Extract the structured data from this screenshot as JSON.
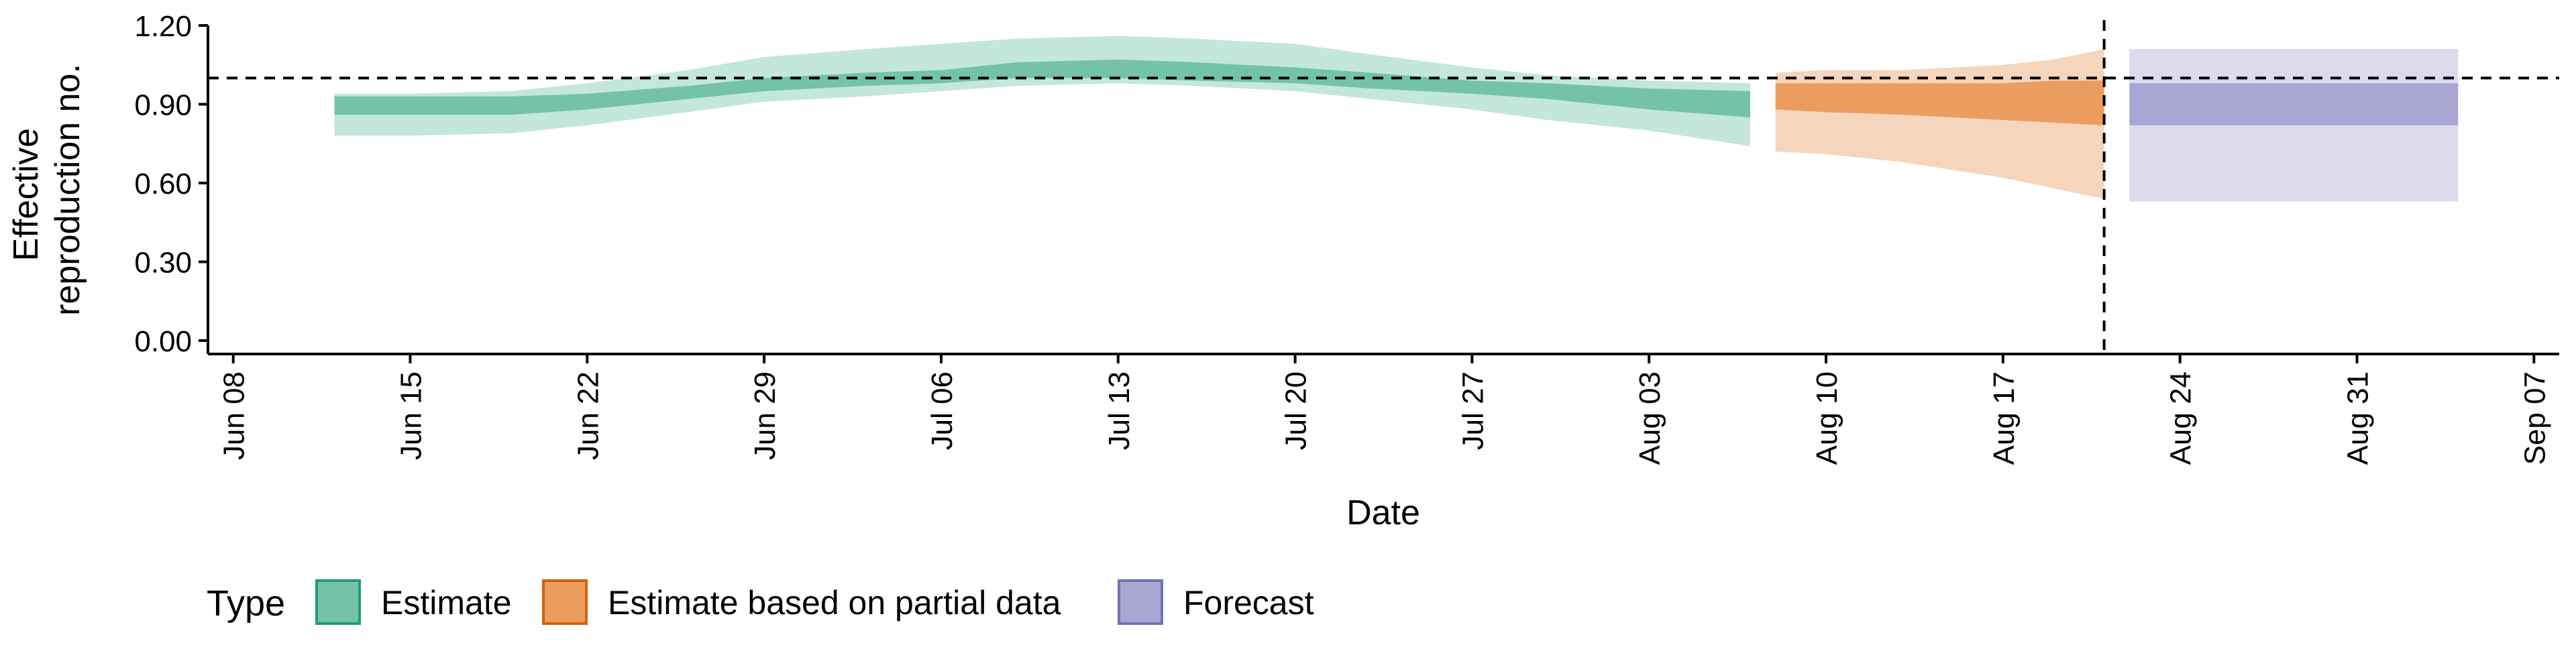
{
  "chart_data": {
    "type": "area",
    "title": "",
    "xlabel": "Date",
    "ylabel_lines": [
      "Effective",
      "reproduction no."
    ],
    "ylim": [
      0,
      1.2
    ],
    "xlim": [
      "2020-06-07",
      "2020-09-08"
    ],
    "y_ticks": [
      0,
      0.3,
      0.6,
      0.9,
      1.2
    ],
    "y_tick_labels": [
      "0.00",
      "0.30",
      "0.60",
      "0.90",
      "1.20"
    ],
    "x_ticks": [
      "2020-06-08",
      "2020-06-15",
      "2020-06-22",
      "2020-06-29",
      "2020-07-06",
      "2020-07-13",
      "2020-07-20",
      "2020-07-27",
      "2020-08-03",
      "2020-08-10",
      "2020-08-17",
      "2020-08-24",
      "2020-08-31",
      "2020-09-07"
    ],
    "x_tick_labels": [
      "Jun 08",
      "Jun 15",
      "Jun 22",
      "Jun 29",
      "Jul 06",
      "Jul 13",
      "Jul 20",
      "Jul 27",
      "Aug 03",
      "Aug 10",
      "Aug 17",
      "Aug 24",
      "Aug 31",
      "Sep 07"
    ],
    "grid": false,
    "reference_hline": 1.0,
    "reference_vline": "2020-08-21",
    "legend": {
      "title": "Type",
      "position": "bottom-left",
      "entries": [
        {
          "label": "Estimate",
          "fill": "#74c3a8",
          "border": "#1b9e77"
        },
        {
          "label": "Estimate based on partial data",
          "fill": "#eb9d60",
          "border": "#d95f02"
        },
        {
          "label": "Forecast",
          "fill": "#aaa6d3",
          "border": "#7570b3"
        }
      ]
    },
    "series": [
      {
        "name": "Estimate",
        "color_inner": "#74c3a8",
        "color_outer": "#c3e7da",
        "x": [
          "2020-06-12",
          "2020-06-15",
          "2020-06-19",
          "2020-06-22",
          "2020-06-26",
          "2020-06-29",
          "2020-07-03",
          "2020-07-06",
          "2020-07-09",
          "2020-07-13",
          "2020-07-16",
          "2020-07-20",
          "2020-07-23",
          "2020-07-27",
          "2020-07-30",
          "2020-08-03",
          "2020-08-07"
        ],
        "outer_upper": [
          0.94,
          0.94,
          0.95,
          0.98,
          1.03,
          1.08,
          1.11,
          1.13,
          1.15,
          1.16,
          1.15,
          1.13,
          1.09,
          1.04,
          1.01,
          0.99,
          0.98
        ],
        "inner_upper": [
          0.93,
          0.93,
          0.93,
          0.94,
          0.97,
          1.0,
          1.02,
          1.03,
          1.06,
          1.07,
          1.06,
          1.04,
          1.02,
          0.99,
          0.98,
          0.96,
          0.95
        ],
        "inner_lower": [
          0.86,
          0.86,
          0.86,
          0.88,
          0.92,
          0.95,
          0.97,
          0.98,
          1.0,
          1.0,
          0.99,
          0.98,
          0.96,
          0.94,
          0.92,
          0.88,
          0.85
        ],
        "outer_lower": [
          0.78,
          0.78,
          0.79,
          0.82,
          0.87,
          0.91,
          0.93,
          0.95,
          0.97,
          0.98,
          0.97,
          0.95,
          0.92,
          0.88,
          0.84,
          0.8,
          0.74
        ]
      },
      {
        "name": "Estimate based on partial data",
        "color_inner": "#eb9d60",
        "color_outer": "#f6d5bd",
        "x": [
          "2020-08-08",
          "2020-08-10",
          "2020-08-13",
          "2020-08-15",
          "2020-08-17",
          "2020-08-19",
          "2020-08-21"
        ],
        "outer_upper": [
          1.02,
          1.03,
          1.03,
          1.04,
          1.05,
          1.07,
          1.11
        ],
        "inner_upper": [
          0.98,
          0.98,
          0.98,
          0.98,
          0.98,
          0.99,
          0.99
        ],
        "inner_lower": [
          0.88,
          0.87,
          0.86,
          0.85,
          0.84,
          0.83,
          0.82
        ],
        "outer_lower": [
          0.72,
          0.71,
          0.68,
          0.65,
          0.62,
          0.58,
          0.54
        ]
      },
      {
        "name": "Forecast",
        "color_inner": "#aaa6d3",
        "color_outer": "#dcdbec",
        "x": [
          "2020-08-22",
          "2020-09-04"
        ],
        "outer_upper": [
          1.11,
          1.11
        ],
        "inner_upper": [
          0.98,
          0.98
        ],
        "inner_lower": [
          0.82,
          0.82
        ],
        "outer_lower": [
          0.53,
          0.53
        ]
      }
    ]
  }
}
